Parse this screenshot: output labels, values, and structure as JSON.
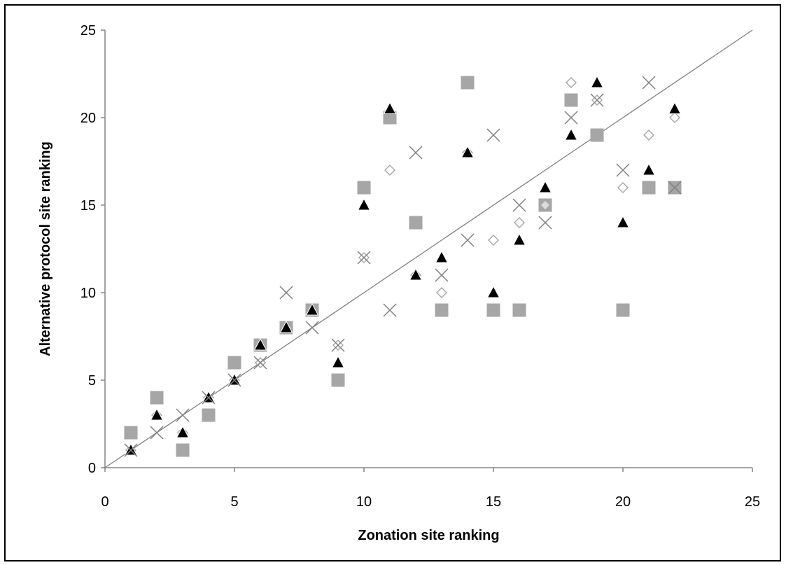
{
  "chart_data": {
    "type": "scatter",
    "title": "",
    "xlabel": "Zonation site ranking",
    "ylabel": "Alternative protocol site ranking",
    "xlim": [
      0,
      25
    ],
    "ylim": [
      0,
      25
    ],
    "x_ticks": [
      "0",
      "5",
      "10",
      "15",
      "20",
      "25"
    ],
    "y_ticks": [
      "0",
      "5",
      "10",
      "15",
      "20",
      "25"
    ],
    "grid": false,
    "legend": "none",
    "reference_line": {
      "x": [
        0,
        25
      ],
      "y": [
        0,
        25
      ],
      "color": "#808080"
    },
    "series": [
      {
        "marker": "square",
        "color": "#a6a6a6",
        "points": [
          [
            1,
            2
          ],
          [
            2,
            4
          ],
          [
            3,
            1
          ],
          [
            4,
            3
          ],
          [
            5,
            6
          ],
          [
            6,
            7
          ],
          [
            7,
            8
          ],
          [
            8,
            9
          ],
          [
            9,
            5
          ],
          [
            10,
            16
          ],
          [
            11,
            20
          ],
          [
            12,
            14
          ],
          [
            13,
            9
          ],
          [
            14,
            22
          ],
          [
            15,
            9
          ],
          [
            16,
            9
          ],
          [
            17,
            15
          ],
          [
            18,
            21
          ],
          [
            19,
            19
          ],
          [
            20,
            9
          ],
          [
            21,
            16
          ],
          [
            22,
            16
          ]
        ]
      },
      {
        "marker": "diamond-open",
        "color": "#a6a6a6",
        "points": [
          [
            1,
            1
          ],
          [
            2,
            3
          ],
          [
            3,
            2
          ],
          [
            4,
            4
          ],
          [
            5,
            5
          ],
          [
            6,
            6
          ],
          [
            7,
            8
          ],
          [
            8,
            9
          ],
          [
            9,
            7
          ],
          [
            10,
            12
          ],
          [
            11,
            17
          ],
          [
            12,
            11
          ],
          [
            13,
            10
          ],
          [
            14,
            18
          ],
          [
            15,
            13
          ],
          [
            16,
            14
          ],
          [
            17,
            15
          ],
          [
            18,
            22
          ],
          [
            19,
            21
          ],
          [
            20,
            16
          ],
          [
            21,
            19
          ],
          [
            22,
            20
          ]
        ]
      },
      {
        "marker": "triangle",
        "color": "#000000",
        "points": [
          [
            1,
            1
          ],
          [
            2,
            3
          ],
          [
            3,
            2
          ],
          [
            4,
            4
          ],
          [
            5,
            5
          ],
          [
            6,
            7
          ],
          [
            7,
            8
          ],
          [
            8,
            9
          ],
          [
            9,
            6
          ],
          [
            10,
            15
          ],
          [
            11,
            20.5
          ],
          [
            12,
            11
          ],
          [
            13,
            12
          ],
          [
            14,
            18
          ],
          [
            15,
            10
          ],
          [
            16,
            13
          ],
          [
            17,
            16
          ],
          [
            18,
            19
          ],
          [
            19,
            22
          ],
          [
            20,
            14
          ],
          [
            21,
            17
          ],
          [
            22,
            20.5
          ]
        ]
      },
      {
        "marker": "cross",
        "color": "#808080",
        "points": [
          [
            1,
            1
          ],
          [
            2,
            2
          ],
          [
            3,
            3
          ],
          [
            4,
            4
          ],
          [
            5,
            5
          ],
          [
            6,
            6
          ],
          [
            7,
            10
          ],
          [
            8,
            8
          ],
          [
            9,
            7
          ],
          [
            10,
            12
          ],
          [
            11,
            9
          ],
          [
            12,
            18
          ],
          [
            13,
            11
          ],
          [
            14,
            13
          ],
          [
            15,
            19
          ],
          [
            16,
            15
          ],
          [
            17,
            14
          ],
          [
            18,
            20
          ],
          [
            19,
            21
          ],
          [
            20,
            17
          ],
          [
            21,
            22
          ],
          [
            22,
            16
          ]
        ]
      }
    ]
  }
}
